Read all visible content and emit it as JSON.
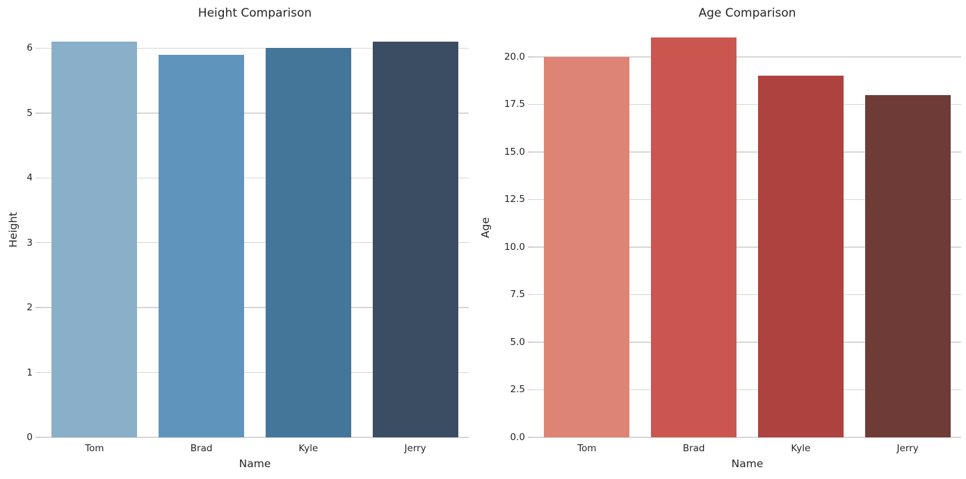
{
  "figure": {
    "background_color": "#ffffff",
    "grid_color": "#d7d7d7",
    "text_color": "#262626"
  },
  "chart_data": [
    {
      "type": "bar",
      "title": "Height Comparison",
      "xlabel": "Name",
      "ylabel": "Height",
      "categories": [
        "Tom",
        "Brad",
        "Kyle",
        "Jerry"
      ],
      "values": [
        6.1,
        5.9,
        6.0,
        6.1
      ],
      "bar_colors": [
        "#8aafc9",
        "#5f94bd",
        "#44769a",
        "#3b4d62"
      ],
      "ylim": [
        0,
        6.4
      ],
      "yticks": [
        "0",
        "1",
        "2",
        "3",
        "4",
        "5",
        "6"
      ],
      "grid": "horizontal",
      "legend": "none"
    },
    {
      "type": "bar",
      "title": "Age Comparison",
      "xlabel": "Name",
      "ylabel": "Age",
      "categories": [
        "Tom",
        "Brad",
        "Kyle",
        "Jerry"
      ],
      "values": [
        20,
        21,
        19,
        18
      ],
      "bar_colors": [
        "#de8474",
        "#cb564f",
        "#ad423e",
        "#6e3b36"
      ],
      "ylim": [
        0,
        22
      ],
      "yticks": [
        "0.0",
        "2.5",
        "5.0",
        "7.5",
        "10.0",
        "12.5",
        "15.0",
        "17.5",
        "20.0"
      ],
      "grid": "horizontal",
      "legend": "none"
    }
  ]
}
